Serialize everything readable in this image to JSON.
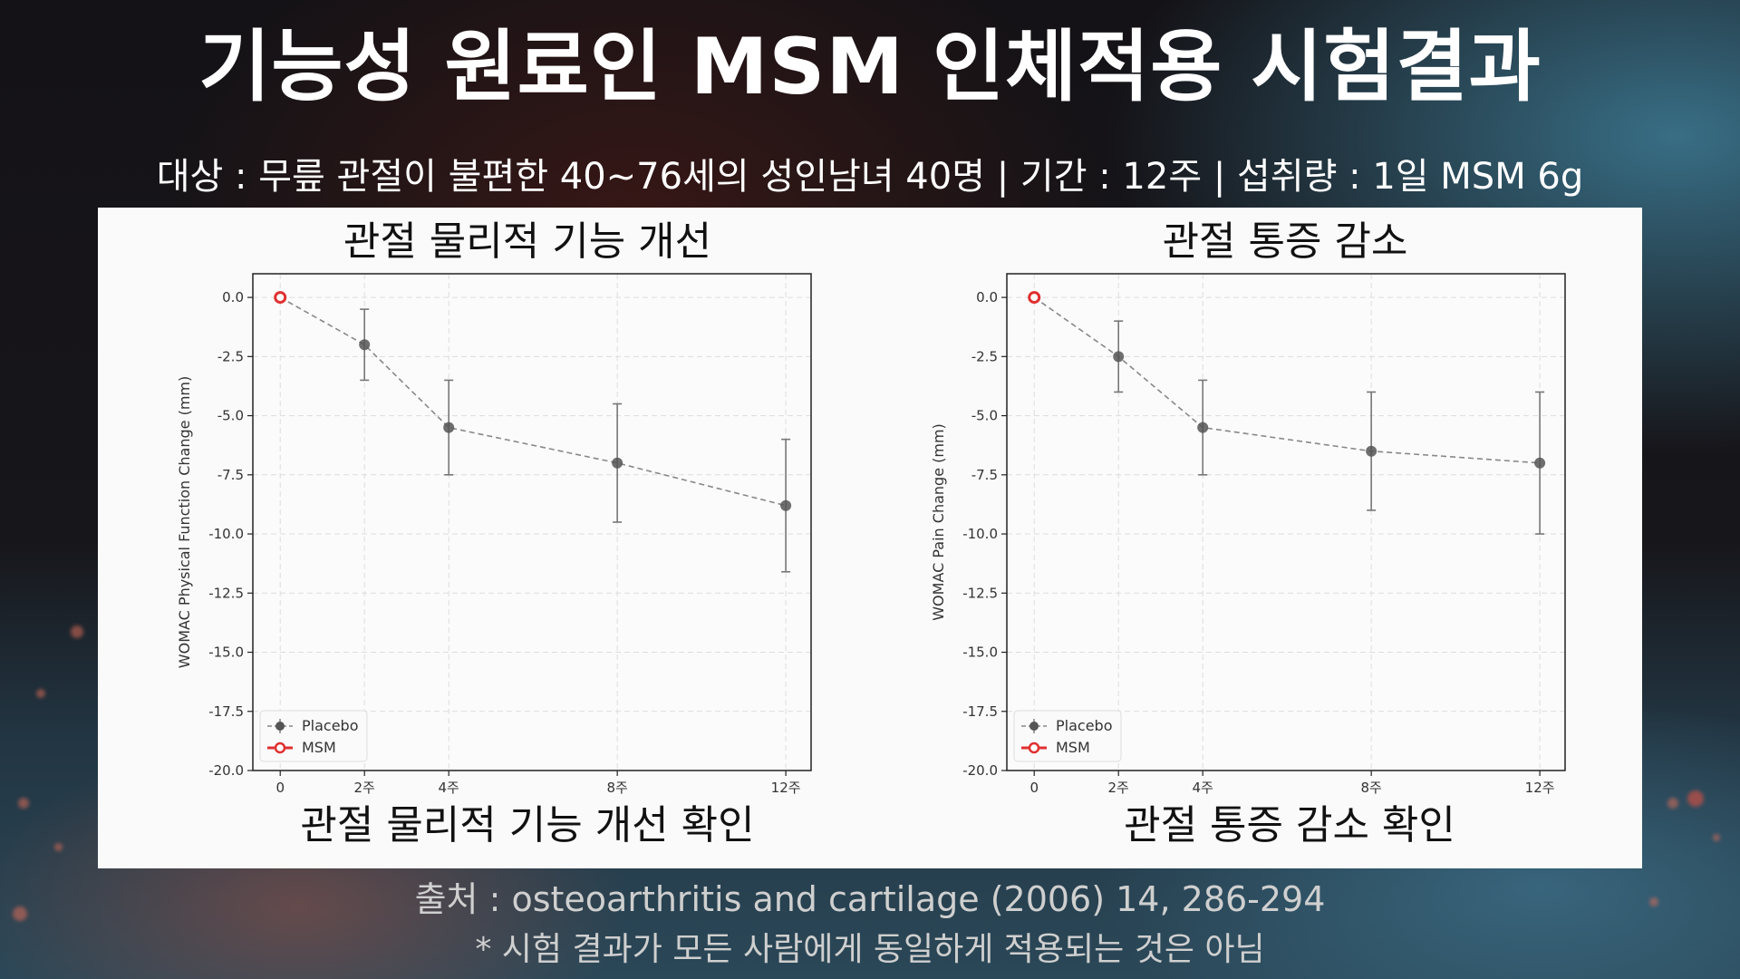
{
  "header": {
    "title": "기능성 원료인 MSM 인체적용 시험결과",
    "subtitle": "대상 : 무릎 관절이 불편한 40~76세의 성인남녀 40명 | 기간 : 12주 | 섭취량 : 1일 MSM 6g"
  },
  "colors": {
    "placebo": "#555555",
    "msm": "#e03030",
    "panel_bg": "#fafafa",
    "grid": "#dddddd"
  },
  "footer": {
    "source": "출처 : osteoarthritis and cartilage (2006) 14, 286-294",
    "disclaimer": "* 시험 결과가 모든 사람에게 동일하게 적용되는 것은 아님"
  },
  "chart_data": [
    {
      "type": "line",
      "title": "관절 물리적 기능 개선",
      "caption": "관절 물리적 기능 개선 확인",
      "xlabel": "",
      "ylabel": "WOMAC Physical Function Change (mm)",
      "x": [
        0,
        2,
        4,
        8,
        12
      ],
      "x_tick_labels": [
        "0",
        "2주",
        "4주",
        "8주",
        "12주"
      ],
      "ylim": [
        -20.0,
        1.0
      ],
      "xlim": [
        -0.65,
        12.6
      ],
      "y_ticks": [
        0.0,
        -2.5,
        -5.0,
        -7.5,
        -10.0,
        -12.5,
        -15.0,
        -17.5,
        -20.0
      ],
      "y_tick_labels": [
        "0.0",
        "-2.5",
        "-5.0",
        "-7.5",
        "-10.0",
        "-12.5",
        "-15.0",
        "-17.5",
        "-20.0"
      ],
      "grid": true,
      "legend_position": "lower left",
      "series": [
        {
          "name": "Placebo",
          "style": "dashed line, filled circle markers, error bars",
          "values": [
            0.0,
            -2.0,
            -5.5,
            -7.0,
            -8.8
          ],
          "error_low": [
            null,
            -3.5,
            -7.5,
            -9.5,
            -11.6
          ],
          "error_high": [
            null,
            -0.5,
            -3.5,
            -4.5,
            -6.0
          ]
        },
        {
          "name": "MSM",
          "style": "solid line, hollow circle markers",
          "values": [
            0.0,
            null,
            null,
            null,
            null
          ]
        }
      ]
    },
    {
      "type": "line",
      "title": "관절 통증 감소",
      "caption": "관절 통증 감소 확인",
      "xlabel": "",
      "ylabel": "WOMAC Pain Change (mm)",
      "x": [
        0,
        2,
        4,
        8,
        12
      ],
      "x_tick_labels": [
        "0",
        "2주",
        "4주",
        "8주",
        "12주"
      ],
      "ylim": [
        -20.0,
        1.0
      ],
      "xlim": [
        -0.65,
        12.6
      ],
      "y_ticks": [
        0.0,
        -2.5,
        -5.0,
        -7.5,
        -10.0,
        -12.5,
        -15.0,
        -17.5,
        -20.0
      ],
      "y_tick_labels": [
        "0.0",
        "-2.5",
        "-5.0",
        "-7.5",
        "-10.0",
        "-12.5",
        "-15.0",
        "-17.5",
        "-20.0"
      ],
      "grid": true,
      "legend_position": "lower left",
      "series": [
        {
          "name": "Placebo",
          "style": "dashed line, filled circle markers, error bars",
          "values": [
            0.0,
            -2.5,
            -5.5,
            -6.5,
            -7.0
          ],
          "error_low": [
            null,
            -4.0,
            -7.5,
            -9.0,
            -10.0
          ],
          "error_high": [
            null,
            -1.0,
            -3.5,
            -4.0,
            -4.0
          ]
        },
        {
          "name": "MSM",
          "style": "solid line, hollow circle markers",
          "values": [
            0.0,
            null,
            null,
            null,
            null
          ]
        }
      ]
    }
  ]
}
